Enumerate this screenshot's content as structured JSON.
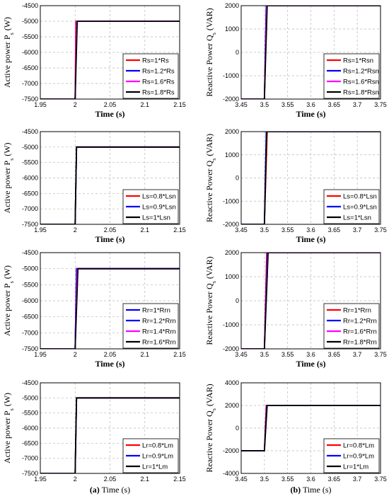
{
  "captions": {
    "a_label": "(a)",
    "a_text": " Time (s)",
    "b_label": "(b)",
    "b_text": " Time (s)"
  },
  "chart_data": [
    {
      "type": "line",
      "column": "a",
      "row": 0,
      "xlabel": "Time (s)",
      "ylabel": "Active power P",
      "ylabel_sub": "s",
      "ylabel_unit": " (W)",
      "xlim": [
        1.95,
        2.15
      ],
      "ylim": [
        -7500,
        -4500
      ],
      "xticks": [
        "1.95",
        "2",
        "2.05",
        "2.1",
        "2.15"
      ],
      "yticks": [
        "-4500",
        "-5000",
        "-5500",
        "-6000",
        "-6500",
        "-7000",
        "-7500"
      ],
      "step_time": 2.0,
      "step_from": -7500,
      "step_to": -5000,
      "legend_position": "lower-right",
      "series": [
        {
          "name": "Rs=1*Rs",
          "color": "#ff0000",
          "x": [
            1.95,
            2.0,
            2.001,
            2.15
          ],
          "y": [
            -7500,
            -7500,
            -5000,
            -5000
          ]
        },
        {
          "name": "Rs=1.2*Rs",
          "color": "#0000ff",
          "x": [
            1.95,
            2.0,
            2.002,
            2.15
          ],
          "y": [
            -7500,
            -7500,
            -5000,
            -5000
          ]
        },
        {
          "name": "Rs=1.6*Rs",
          "color": "#ff00ff",
          "x": [
            1.95,
            2.0,
            2.002,
            2.15
          ],
          "y": [
            -7500,
            -7500,
            -5000,
            -5000
          ]
        },
        {
          "name": "Rs=1.8*Rs",
          "color": "#000000",
          "x": [
            1.95,
            2.0,
            2.003,
            2.15
          ],
          "y": [
            -7500,
            -7500,
            -5000,
            -5000
          ]
        }
      ]
    },
    {
      "type": "line",
      "column": "b",
      "row": 0,
      "xlabel": "Time (s)",
      "ylabel": "Reactive Power Q",
      "ylabel_sub": "s",
      "ylabel_unit": " (VAR)",
      "xlim": [
        3.45,
        3.75
      ],
      "ylim": [
        -2000,
        2000
      ],
      "xticks": [
        "3.45",
        "3.5",
        "3.55",
        "3.6",
        "3.65",
        "3.7",
        "3.75"
      ],
      "yticks": [
        "2000",
        "1000",
        "0",
        "-1000",
        "-2000"
      ],
      "step_time": 3.5,
      "step_from": -2000,
      "step_to": 2000,
      "legend_position": "lower-right",
      "series": [
        {
          "name": "Rs=1*Rsn",
          "color": "#ff0000",
          "x": [
            3.45,
            3.5,
            3.504,
            3.75
          ],
          "y": [
            -2000,
            -2000,
            2000,
            2000
          ]
        },
        {
          "name": "Rs=1.2*Rsn",
          "color": "#0000ff",
          "x": [
            3.45,
            3.5,
            3.504,
            3.75
          ],
          "y": [
            -2000,
            -2000,
            2000,
            2000
          ]
        },
        {
          "name": "Rs=1.6*Rsn",
          "color": "#ff00ff",
          "x": [
            3.45,
            3.5,
            3.505,
            3.75
          ],
          "y": [
            -2000,
            -2000,
            2000,
            2000
          ]
        },
        {
          "name": "Rs=1.8*Rsn",
          "color": "#000000",
          "x": [
            3.45,
            3.5,
            3.506,
            3.75
          ],
          "y": [
            -2000,
            -2000,
            2000,
            2000
          ]
        }
      ]
    },
    {
      "type": "line",
      "column": "a",
      "row": 1,
      "xlabel": "Time (s)",
      "ylabel": "Active power P",
      "ylabel_sub": "s",
      "ylabel_unit": " (W)",
      "xlim": [
        1.95,
        2.15
      ],
      "ylim": [
        -7500,
        -4500
      ],
      "xticks": [
        "1.95",
        "2",
        "2.05",
        "2.1",
        "2.15"
      ],
      "yticks": [
        "-4500",
        "-5000",
        "-5500",
        "-6000",
        "-6500",
        "-7000",
        "-7500"
      ],
      "step_time": 2.0,
      "step_from": -7500,
      "step_to": -5000,
      "legend_position": "lower-right",
      "series": [
        {
          "name": "Ls=0.8*Lsn",
          "color": "#ff0000",
          "x": [
            1.95,
            2.0,
            2.002,
            2.15
          ],
          "y": [
            -7500,
            -7500,
            -5000,
            -5000
          ]
        },
        {
          "name": "Ls=0.9*Lsn",
          "color": "#0000ff",
          "x": [
            1.95,
            2.0,
            2.002,
            2.15
          ],
          "y": [
            -7500,
            -7500,
            -5000,
            -5000
          ]
        },
        {
          "name": "Ls=1*Lsn",
          "color": "#000000",
          "x": [
            1.95,
            2.0,
            2.002,
            2.15
          ],
          "y": [
            -7500,
            -7500,
            -5000,
            -5000
          ]
        }
      ]
    },
    {
      "type": "line",
      "column": "b",
      "row": 1,
      "xlabel": "Time (s)",
      "ylabel": "Reactive Power Q",
      "ylabel_sub": "s",
      "ylabel_unit": " (VAR)",
      "xlim": [
        3.45,
        3.75
      ],
      "ylim": [
        -2000,
        2000
      ],
      "xticks": [
        "3.45",
        "3.5",
        "3.55",
        "3.6",
        "3.65",
        "3.7",
        "3.75"
      ],
      "yticks": [
        "2000",
        "1000",
        "0",
        "-1000",
        "-2000"
      ],
      "step_time": 3.5,
      "step_from": -2000,
      "step_to": 2000,
      "legend_position": "lower-right",
      "series": [
        {
          "name": "Ls=0.8*Lsn",
          "color": "#ff0000",
          "x": [
            3.45,
            3.5,
            3.506,
            3.75
          ],
          "y": [
            -2000,
            -2000,
            2000,
            2000
          ]
        },
        {
          "name": "Ls=0.9*Lsn",
          "color": "#0000ff",
          "x": [
            3.45,
            3.5,
            3.504,
            3.75
          ],
          "y": [
            -2000,
            -2000,
            2000,
            2000
          ]
        },
        {
          "name": "Ls=1*Lsn",
          "color": "#000000",
          "x": [
            3.45,
            3.5,
            3.505,
            3.75
          ],
          "y": [
            -2000,
            -2000,
            2000,
            2000
          ]
        }
      ]
    },
    {
      "type": "line",
      "column": "a",
      "row": 2,
      "xlabel": "Time (s)",
      "ylabel": "Active power P",
      "ylabel_sub": "s",
      "ylabel_unit": " (W)",
      "xlim": [
        1.95,
        2.15
      ],
      "ylim": [
        -7500,
        -4500
      ],
      "xticks": [
        "1.95",
        "2",
        "2.05",
        "2.1",
        "2.15"
      ],
      "yticks": [
        "-4500",
        "-5000",
        "-5500",
        "-6000",
        "-6500",
        "-7000",
        "-7500"
      ],
      "step_time": 2.0,
      "step_from": -7500,
      "step_to": -5000,
      "legend_position": "lower-right",
      "series": [
        {
          "name": "Rr=1*Rrn",
          "color": "#0000ff",
          "x": [
            1.95,
            2.0,
            2.002,
            2.15
          ],
          "y": [
            -7500,
            -7500,
            -5000,
            -5000
          ]
        },
        {
          "name": "Rr=1.2*Rrn",
          "color": "#0000ff",
          "x": [
            1.95,
            2.0,
            2.002,
            2.15
          ],
          "y": [
            -7500,
            -7500,
            -5000,
            -5000
          ]
        },
        {
          "name": "Rr=1.4*Rrn",
          "color": "#ff00ff",
          "x": [
            1.95,
            2.0,
            2.003,
            2.15
          ],
          "y": [
            -7500,
            -7500,
            -5000,
            -5000
          ]
        },
        {
          "name": "Rr=1.6*Rrn",
          "color": "#000000",
          "x": [
            1.95,
            2.0,
            2.004,
            2.15
          ],
          "y": [
            -7500,
            -7500,
            -5000,
            -5000
          ]
        }
      ]
    },
    {
      "type": "line",
      "column": "b",
      "row": 2,
      "xlabel": "Time (s)",
      "ylabel": "Reactive Power Q",
      "ylabel_sub": "s",
      "ylabel_unit": " (VAR)",
      "xlim": [
        3.45,
        3.75
      ],
      "ylim": [
        -2000,
        2000
      ],
      "xticks": [
        "3.45",
        "3.5",
        "3.55",
        "3.6",
        "3.65",
        "3.7",
        "3.75"
      ],
      "yticks": [
        "2000",
        "1000",
        "0",
        "-1000",
        "-2000"
      ],
      "step_time": 3.5,
      "step_from": -2000,
      "step_to": 2000,
      "legend_position": "lower-right",
      "series": [
        {
          "name": "Rr=1*Rrn",
          "color": "#ff0000",
          "x": [
            3.45,
            3.5,
            3.505,
            3.75
          ],
          "y": [
            -2000,
            -2000,
            2000,
            2000
          ]
        },
        {
          "name": "Rr=1.2*Rrn",
          "color": "#0000ff",
          "x": [
            3.45,
            3.5,
            3.506,
            3.75
          ],
          "y": [
            -2000,
            -2000,
            2000,
            2000
          ]
        },
        {
          "name": "Rr=1.6*Rrn",
          "color": "#ff00ff",
          "x": [
            3.45,
            3.5,
            3.507,
            3.75
          ],
          "y": [
            -2000,
            -2000,
            2000,
            2000
          ]
        },
        {
          "name": "Rr=1.8*Rrn",
          "color": "#000000",
          "x": [
            3.45,
            3.5,
            3.508,
            3.75
          ],
          "y": [
            -2000,
            -2000,
            2000,
            2000
          ]
        }
      ]
    },
    {
      "type": "line",
      "column": "a",
      "row": 3,
      "xlabel": "",
      "ylabel": "Active power P",
      "ylabel_sub": "s",
      "ylabel_unit": " (W)",
      "xlim": [
        1.95,
        2.15
      ],
      "ylim": [
        -7500,
        -4500
      ],
      "xticks": [
        "1.95",
        "2",
        "2.05",
        "2.1",
        "2.15"
      ],
      "yticks": [
        "-4500",
        "-5000",
        "-5500",
        "-6000",
        "-6500",
        "-7000",
        "-7500"
      ],
      "step_time": 2.0,
      "step_from": -7500,
      "step_to": -5000,
      "legend_position": "lower-right",
      "series": [
        {
          "name": "Lr=0.8*Lm",
          "color": "#ff0000",
          "x": [
            1.95,
            2.0,
            2.002,
            2.15
          ],
          "y": [
            -7500,
            -7500,
            -5000,
            -5000
          ]
        },
        {
          "name": "Lr=0.9*Lm",
          "color": "#0000ff",
          "x": [
            1.95,
            2.0,
            2.002,
            2.15
          ],
          "y": [
            -7500,
            -7500,
            -5000,
            -5000
          ]
        },
        {
          "name": "Lr=1*Lm",
          "color": "#000000",
          "x": [
            1.95,
            2.0,
            2.002,
            2.15
          ],
          "y": [
            -7500,
            -7500,
            -5000,
            -5000
          ]
        }
      ]
    },
    {
      "type": "line",
      "column": "b",
      "row": 3,
      "xlabel": "",
      "ylabel": "Reactive Power Q",
      "ylabel_sub": "s",
      "ylabel_unit": " (VAR)",
      "xlim": [
        3.45,
        3.75
      ],
      "ylim": [
        -4000,
        4000
      ],
      "xticks": [
        "3.45",
        "3.5",
        "3.55",
        "3.6",
        "3.65",
        "3.7",
        "3.75"
      ],
      "yticks": [
        "4000",
        "2000",
        "0",
        "-2000",
        "-4000"
      ],
      "step_time": 3.5,
      "step_from": -2000,
      "step_to": 2000,
      "legend_position": "lower-right",
      "series": [
        {
          "name": "Lr=0.8*Lm",
          "color": "#ff0000",
          "x": [
            3.45,
            3.5,
            3.504,
            3.75
          ],
          "y": [
            -2000,
            -2000,
            2000,
            2000
          ]
        },
        {
          "name": "Lr=0.9*Lm",
          "color": "#0000ff",
          "x": [
            3.45,
            3.5,
            3.505,
            3.75
          ],
          "y": [
            -2000,
            -2000,
            2000,
            2000
          ]
        },
        {
          "name": "Lr=1*Lm",
          "color": "#000000",
          "x": [
            3.45,
            3.5,
            3.506,
            3.75
          ],
          "y": [
            -2000,
            -2000,
            2000,
            2000
          ]
        }
      ]
    }
  ]
}
